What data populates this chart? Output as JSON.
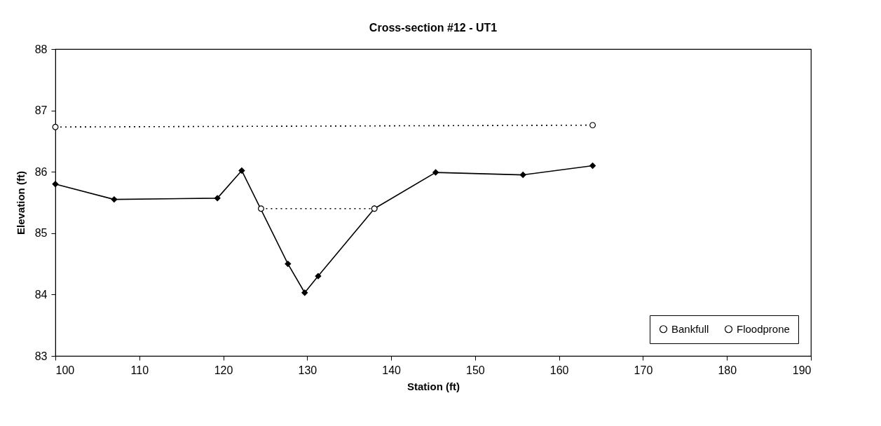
{
  "chart_data": {
    "type": "line",
    "title": "Cross-section #12 - UT1",
    "xlabel": "Station (ft)",
    "ylabel": "Elevation (ft)",
    "xlim": [
      100,
      190
    ],
    "xticks": [
      100,
      110,
      120,
      130,
      140,
      150,
      160,
      170,
      180,
      190
    ],
    "ylim": [
      83,
      88
    ],
    "yticks": [
      83,
      84,
      85,
      86,
      87,
      88
    ],
    "grid": false,
    "legend": "bottom right",
    "series": [
      {
        "color": "#000000",
        "marker": "diamond",
        "line_style": "solid",
        "x": [
          100,
          107,
          119.3,
          122.2,
          127.7,
          129.7,
          131.3,
          138,
          145.3,
          155.7,
          164
        ],
        "values": [
          85.8,
          85.55,
          85.57,
          86.02,
          84.5,
          84.03,
          84.3,
          85.4,
          85.99,
          85.95,
          86.1
        ]
      },
      {
        "name": "Bankfull",
        "color": "#000000",
        "marker": "circle",
        "line_style": "dotted",
        "x": [
          124.5,
          138
        ],
        "values": [
          85.4,
          85.4
        ]
      },
      {
        "name": "Floodprone",
        "color": "#000000",
        "marker": "circle",
        "line_style": "dotted",
        "x": [
          100,
          164
        ],
        "values": [
          86.73,
          86.76
        ]
      }
    ]
  }
}
